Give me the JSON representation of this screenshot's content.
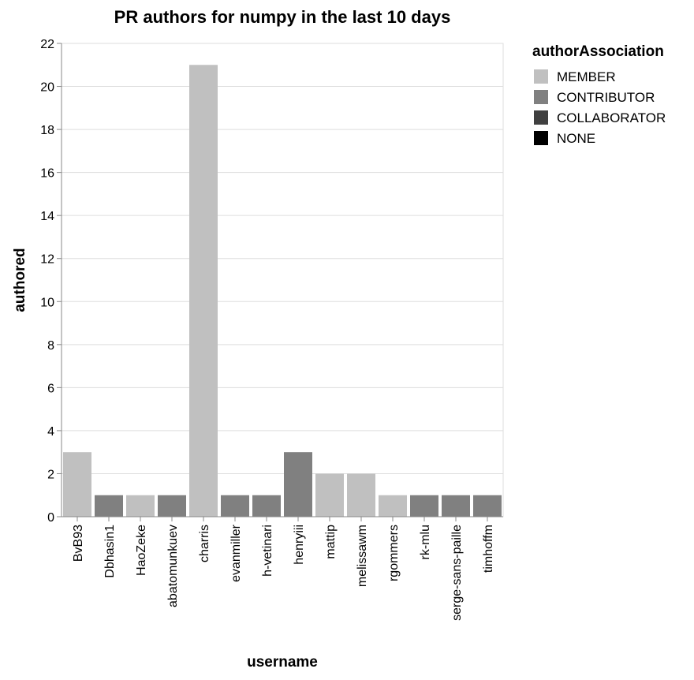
{
  "chart_data": {
    "type": "bar",
    "title": "PR authors for numpy in the last 10 days",
    "xlabel": "username",
    "ylabel": "authored",
    "ylim": [
      0,
      22
    ],
    "yticks": [
      0,
      2,
      4,
      6,
      8,
      10,
      12,
      14,
      16,
      18,
      20,
      22
    ],
    "grid": true,
    "categories": [
      "BvB93",
      "Dbhasin1",
      "HaoZeke",
      "abatomunkuev",
      "charris",
      "evanmiller",
      "h-vetinari",
      "henryiii",
      "mattip",
      "melissawm",
      "rgommers",
      "rk-mlu",
      "serge-sans-paille",
      "timhoffm"
    ],
    "values": [
      3,
      1,
      1,
      1,
      21,
      1,
      1,
      3,
      2,
      2,
      1,
      1,
      1,
      1
    ],
    "associations": [
      "MEMBER",
      "CONTRIBUTOR",
      "MEMBER",
      "CONTRIBUTOR",
      "MEMBER",
      "CONTRIBUTOR",
      "CONTRIBUTOR",
      "CONTRIBUTOR",
      "MEMBER",
      "MEMBER",
      "MEMBER",
      "CONTRIBUTOR",
      "CONTRIBUTOR",
      "CONTRIBUTOR"
    ],
    "legend": {
      "title": "authorAssociation",
      "placement": "top-right",
      "items": [
        {
          "label": "MEMBER",
          "color": "#c0c0c0"
        },
        {
          "label": "CONTRIBUTOR",
          "color": "#808080"
        },
        {
          "label": "COLLABORATOR",
          "color": "#404040"
        },
        {
          "label": "NONE",
          "color": "#000000"
        }
      ]
    }
  }
}
